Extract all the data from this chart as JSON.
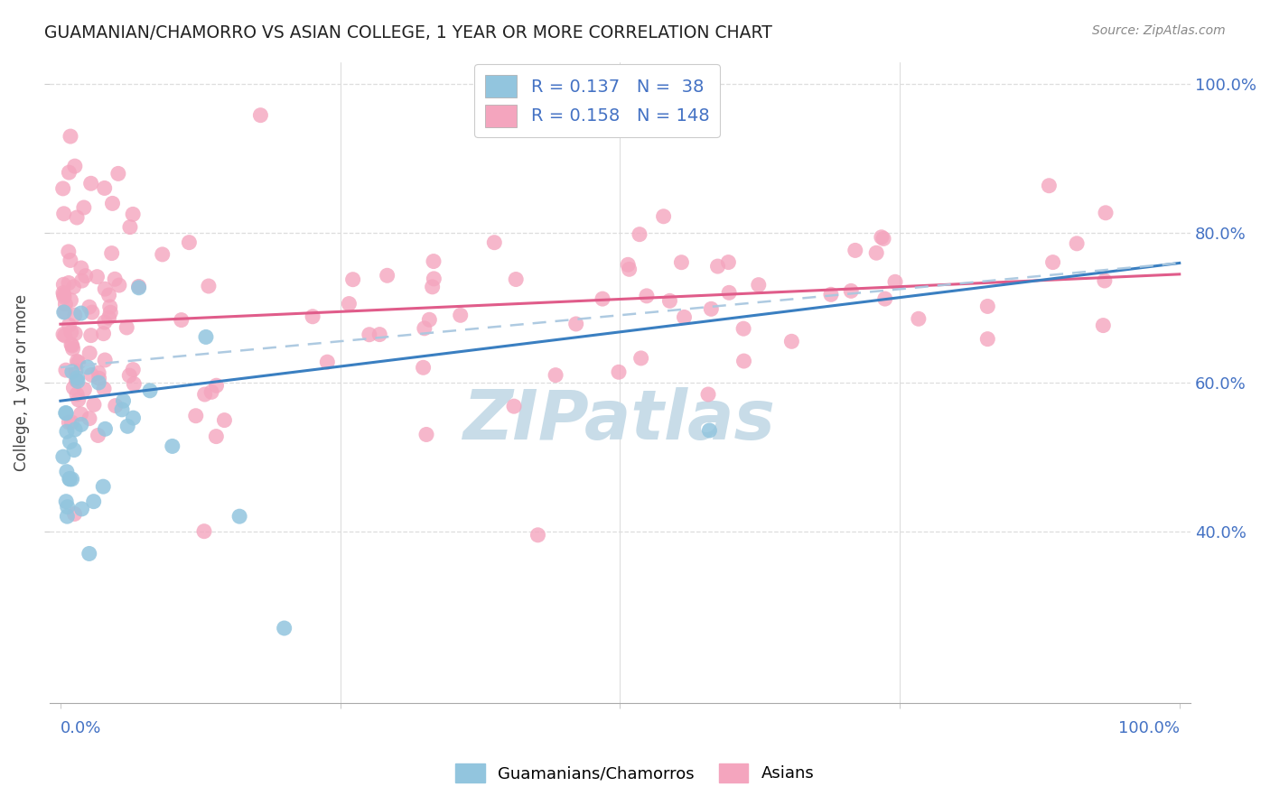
{
  "title": "GUAMANIAN/CHAMORRO VS ASIAN COLLEGE, 1 YEAR OR MORE CORRELATION CHART",
  "source": "Source: ZipAtlas.com",
  "ylabel": "College, 1 year or more",
  "legend_label1": "Guamanians/Chamorros",
  "legend_label2": "Asians",
  "R1": 0.137,
  "N1": 38,
  "R2": 0.158,
  "N2": 148,
  "blue_scatter_color": "#92c5de",
  "pink_scatter_color": "#f4a5be",
  "blue_line_color": "#3a7fc1",
  "pink_line_color": "#e05c8a",
  "dashed_line_color": "#aac8e0",
  "axis_label_color": "#4472c4",
  "title_color": "#222222",
  "source_color": "#888888",
  "grid_color": "#dddddd",
  "watermark_color": "#c8dce8",
  "background_color": "#ffffff",
  "xlim": [
    -0.01,
    1.01
  ],
  "ylim": [
    0.17,
    1.03
  ],
  "yticks": [
    0.4,
    0.6,
    0.8,
    1.0
  ],
  "ytick_labels": [
    "40.0%",
    "60.0%",
    "80.0%",
    "100.0%"
  ],
  "blue_trend_start": 0.575,
  "blue_trend_end": 0.76,
  "pink_trend_start": 0.678,
  "pink_trend_end": 0.745,
  "dashed_trend_start": 0.62,
  "dashed_trend_end": 0.76
}
